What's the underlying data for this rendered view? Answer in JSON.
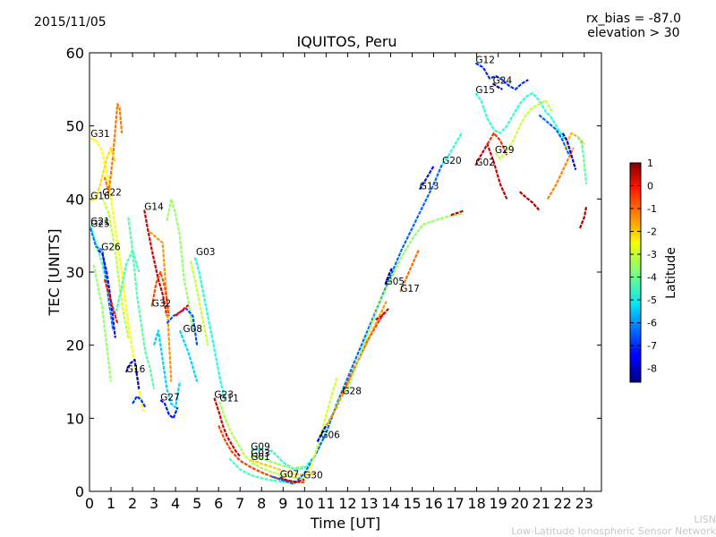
{
  "header": {
    "date": "2015/11/05",
    "rx_bias": "rx_bias = -87.0",
    "elevation": "elevation > 30",
    "title": "IQUITOS, Peru"
  },
  "footer": {
    "line1": "LISN",
    "line2": "Low-Latitude Ionospheric Sensor Network"
  },
  "chart_data": {
    "type": "scatter",
    "title": "IQUITOS, Peru",
    "xlabel": "Time [UT]",
    "ylabel": "TEC [UNITS]",
    "xlim": [
      0,
      23.8
    ],
    "ylim": [
      0,
      60
    ],
    "xticks": [
      0,
      1,
      2,
      3,
      4,
      5,
      6,
      7,
      8,
      9,
      10,
      11,
      12,
      13,
      14,
      15,
      16,
      17,
      18,
      19,
      20,
      21,
      22,
      23
    ],
    "yticks": [
      0,
      10,
      20,
      30,
      40,
      50,
      60
    ],
    "colorbar": {
      "label": "Latitude",
      "range": [
        -8.6,
        1.0
      ],
      "ticks": [
        1,
        0,
        -1,
        -2,
        -3,
        -4,
        -5,
        -6,
        -7,
        -8
      ]
    },
    "satellite_labels": [
      {
        "name": "G31",
        "x": 0.05,
        "y": 48.5
      },
      {
        "name": "G16",
        "x": 0.05,
        "y": 40.0
      },
      {
        "name": "G22",
        "x": 0.6,
        "y": 40.5
      },
      {
        "name": "G21",
        "x": 0.05,
        "y": 36.5
      },
      {
        "name": "G25",
        "x": 0.05,
        "y": 36.2
      },
      {
        "name": "G26",
        "x": 0.55,
        "y": 33.0
      },
      {
        "name": "G14",
        "x": 2.55,
        "y": 38.5
      },
      {
        "name": "G03",
        "x": 4.95,
        "y": 32.3
      },
      {
        "name": "G32",
        "x": 2.9,
        "y": 25.3
      },
      {
        "name": "G08",
        "x": 4.35,
        "y": 21.8
      },
      {
        "name": "G16",
        "x": 1.7,
        "y": 16.3
      },
      {
        "name": "G27",
        "x": 3.3,
        "y": 12.4
      },
      {
        "name": "G23",
        "x": 5.8,
        "y": 12.8
      },
      {
        "name": "G11",
        "x": 6.05,
        "y": 12.3
      },
      {
        "name": "G09",
        "x": 7.5,
        "y": 5.7
      },
      {
        "name": "G03",
        "x": 7.5,
        "y": 4.8
      },
      {
        "name": "G01",
        "x": 7.5,
        "y": 4.3
      },
      {
        "name": "G07",
        "x": 8.85,
        "y": 1.9
      },
      {
        "name": "G30",
        "x": 9.95,
        "y": 1.8
      },
      {
        "name": "G06",
        "x": 10.75,
        "y": 7.3
      },
      {
        "name": "G28",
        "x": 11.75,
        "y": 13.3
      },
      {
        "name": "G05",
        "x": 13.75,
        "y": 28.3
      },
      {
        "name": "G17",
        "x": 14.45,
        "y": 27.3
      },
      {
        "name": "G13",
        "x": 15.35,
        "y": 41.3
      },
      {
        "name": "G20",
        "x": 16.4,
        "y": 44.8
      },
      {
        "name": "G12",
        "x": 17.95,
        "y": 58.6
      },
      {
        "name": "G24",
        "x": 18.75,
        "y": 55.8
      },
      {
        "name": "G15",
        "x": 17.95,
        "y": 54.5
      },
      {
        "name": "G29",
        "x": 18.85,
        "y": 46.3
      },
      {
        "name": "G02",
        "x": 17.95,
        "y": 44.6
      }
    ],
    "series": [
      {
        "lat": -2.6,
        "x": [
          0.05,
          0.3,
          0.6,
          0.9,
          1.1,
          1.3,
          1.5,
          1.7,
          1.9,
          2.1,
          2.3,
          2.5
        ],
        "y": [
          48.3,
          48.0,
          46.5,
          42.0,
          38.0,
          34.0,
          30.0,
          25.0,
          21.0,
          17.5,
          14.0,
          11.0
        ]
      },
      {
        "lat": -1.3,
        "x": [
          0.7,
          0.9,
          1.1,
          1.3,
          1.4,
          1.5
        ],
        "y": [
          43.0,
          41.0,
          46.0,
          53.0,
          52.5,
          49.0
        ]
      },
      {
        "lat": -2.3,
        "x": [
          0.05,
          0.3,
          0.5,
          0.8,
          1.0,
          1.2
        ],
        "y": [
          39.8,
          40.0,
          42.0,
          45.5,
          47.0,
          45.0
        ]
      },
      {
        "lat": -3.2,
        "x": [
          0.6,
          0.9,
          1.2,
          1.4,
          1.6,
          1.8
        ],
        "y": [
          40.2,
          38.0,
          33.0,
          28.0,
          24.0,
          21.0
        ]
      },
      {
        "lat": -4.3,
        "x": [
          0.05,
          0.3,
          0.6,
          0.9,
          1.2,
          1.5,
          1.7,
          2.0,
          2.3
        ],
        "y": [
          36.3,
          34.0,
          31.0,
          27.0,
          24.0,
          28.0,
          31.0,
          33.0,
          30.0
        ]
      },
      {
        "lat": -6.2,
        "x": [
          0.05,
          0.3,
          0.6,
          0.9,
          1.1
        ],
        "y": [
          36.0,
          33.5,
          33.0,
          26.0,
          22.0
        ]
      },
      {
        "lat": -7.3,
        "x": [
          0.4,
          0.6,
          0.8,
          1.0,
          1.2
        ],
        "y": [
          33.0,
          32.5,
          30.0,
          26.0,
          21.0
        ]
      },
      {
        "lat": -0.4,
        "x": [
          0.7,
          0.9,
          1.1,
          1.3
        ],
        "y": [
          29.0,
          27.0,
          25.0,
          23.0
        ]
      },
      {
        "lat": -3.6,
        "x": [
          0.2,
          0.4,
          0.6,
          0.8,
          1.0
        ],
        "y": [
          31.0,
          28.0,
          25.0,
          20.0,
          15.0
        ]
      },
      {
        "lat": 0.3,
        "x": [
          2.55,
          2.7,
          2.9,
          3.2,
          3.4,
          3.6
        ],
        "y": [
          38.5,
          36.0,
          33.0,
          29.0,
          27.0,
          24.0
        ]
      },
      {
        "lat": -1.6,
        "x": [
          2.8,
          3.0,
          3.2,
          3.4,
          3.6,
          3.8
        ],
        "y": [
          35.5,
          35.0,
          34.5,
          34.0,
          26.0,
          15.0
        ]
      },
      {
        "lat": -3.6,
        "x": [
          3.6,
          3.8,
          4.0,
          4.2,
          4.4,
          4.6,
          4.8
        ],
        "y": [
          37.0,
          40.0,
          38.0,
          35.0,
          29.0,
          26.0,
          22.0
        ]
      },
      {
        "lat": -4.2,
        "x": [
          1.8,
          2.0,
          2.2,
          2.4,
          2.6,
          2.8,
          3.0
        ],
        "y": [
          37.5,
          33.0,
          27.0,
          23.0,
          19.0,
          17.0,
          14.0
        ]
      },
      {
        "lat": -4.7,
        "x": [
          4.9,
          5.1,
          5.3,
          5.5,
          5.7,
          5.9,
          6.1,
          6.3
        ],
        "y": [
          32.0,
          30.0,
          27.0,
          24.0,
          21.0,
          18.0,
          15.0,
          12.5
        ]
      },
      {
        "lat": -3.1,
        "x": [
          4.7,
          4.9,
          5.1,
          5.3,
          5.5
        ],
        "y": [
          31.5,
          29.0,
          26.0,
          23.0,
          20.0
        ]
      },
      {
        "lat": -0.9,
        "x": [
          2.9,
          3.1,
          3.3,
          3.5,
          3.7
        ],
        "y": [
          25.3,
          28.5,
          30.0,
          28.0,
          24.0
        ]
      },
      {
        "lat": -6.6,
        "x": [
          3.6,
          3.9,
          4.2,
          4.5,
          4.8,
          5.0
        ],
        "y": [
          23.0,
          24.0,
          24.5,
          25.0,
          24.0,
          20.0
        ]
      },
      {
        "lat": -0.2,
        "x": [
          4.0,
          4.2,
          4.4,
          4.6
        ],
        "y": [
          24.0,
          24.5,
          25.0,
          25.5
        ]
      },
      {
        "lat": -5.4,
        "x": [
          4.2,
          4.4,
          4.6,
          4.8,
          5.0
        ],
        "y": [
          22.0,
          20.5,
          19.0,
          17.0,
          15.0
        ]
      },
      {
        "lat": -7.8,
        "x": [
          1.7,
          1.9,
          2.1,
          2.3
        ],
        "y": [
          16.3,
          17.5,
          18.0,
          14.0
        ]
      },
      {
        "lat": -6.9,
        "x": [
          2.0,
          2.2,
          2.4,
          2.6
        ],
        "y": [
          12.0,
          13.0,
          12.5,
          11.5
        ]
      },
      {
        "lat": -7.2,
        "x": [
          3.3,
          3.5,
          3.7,
          3.9,
          4.1
        ],
        "y": [
          12.5,
          12.0,
          10.5,
          10.0,
          11.5
        ]
      },
      {
        "lat": -5.4,
        "x": [
          3.0,
          3.2,
          3.4,
          3.6,
          3.8,
          4.0,
          4.2
        ],
        "y": [
          20.0,
          22.0,
          18.0,
          14.0,
          12.0,
          11.5,
          15.0
        ]
      },
      {
        "lat": 0.2,
        "x": [
          5.8,
          6.0,
          6.2,
          6.4,
          6.6,
          6.8,
          7.0
        ],
        "y": [
          12.8,
          11.0,
          9.0,
          7.5,
          6.5,
          5.5,
          4.8
        ]
      },
      {
        "lat": -3.3,
        "x": [
          6.05,
          6.3,
          6.6,
          6.9,
          7.2,
          7.5,
          8.0,
          8.5,
          9.0,
          9.5,
          10.0
        ],
        "y": [
          12.3,
          10.0,
          8.0,
          6.5,
          5.0,
          4.0,
          3.2,
          2.6,
          2.2,
          1.9,
          1.7
        ]
      },
      {
        "lat": -0.8,
        "x": [
          6.0,
          6.3,
          6.6,
          7.0,
          7.5,
          8.0,
          8.5,
          9.0,
          9.5,
          10.0
        ],
        "y": [
          9.0,
          7.0,
          5.5,
          4.2,
          3.3,
          2.6,
          2.0,
          1.6,
          1.3,
          1.2
        ]
      },
      {
        "lat": -4.6,
        "x": [
          7.5,
          8.0,
          8.5,
          9.0,
          9.5,
          10.0,
          10.5,
          11.0,
          11.5,
          12.0
        ],
        "y": [
          5.7,
          5.8,
          5.5,
          4.0,
          3.0,
          3.2,
          5.0,
          8.0,
          12.0,
          15.5
        ]
      },
      {
        "lat": -3.6,
        "x": [
          7.5,
          8.0,
          8.5,
          9.0,
          9.5,
          10.0
        ],
        "y": [
          4.8,
          4.5,
          4.0,
          3.5,
          3.2,
          3.4
        ]
      },
      {
        "lat": -2.1,
        "x": [
          7.5,
          8.0,
          8.5,
          9.0,
          9.5,
          10.0,
          10.5
        ],
        "y": [
          4.3,
          3.8,
          3.3,
          2.8,
          2.4,
          2.2,
          2.5
        ]
      },
      {
        "lat": -4.4,
        "x": [
          6.5,
          7.0,
          7.5,
          8.0,
          8.5,
          9.0,
          9.5
        ],
        "y": [
          4.5,
          3.0,
          2.2,
          1.8,
          1.5,
          1.3,
          1.2
        ]
      },
      {
        "lat": -6.4,
        "x": [
          8.5,
          9.0,
          9.5,
          10.0,
          10.5,
          11.0,
          11.5,
          12.0,
          12.5,
          13.0,
          13.5,
          14.0,
          14.5,
          15.0,
          15.5,
          16.0,
          16.4
        ],
        "y": [
          2.0,
          1.5,
          1.0,
          2.5,
          5.0,
          8.0,
          12.0,
          15.5,
          19.0,
          22.5,
          26.0,
          29.5,
          33.0,
          36.0,
          39.0,
          42.0,
          44.8
        ]
      },
      {
        "lat": 0.4,
        "x": [
          8.85,
          9.2,
          9.6,
          10.0
        ],
        "y": [
          1.9,
          1.5,
          1.3,
          1.6
        ]
      },
      {
        "lat": -3.0,
        "x": [
          9.95,
          10.3,
          10.7,
          11.1,
          11.5
        ],
        "y": [
          1.8,
          3.5,
          7.0,
          11.5,
          15.5
        ]
      },
      {
        "lat": -3.9,
        "x": [
          10.7,
          11.2,
          11.6,
          12.0
        ],
        "y": [
          7.3,
          10.0,
          12.5,
          14.0
        ]
      },
      {
        "lat": -7.7,
        "x": [
          10.6,
          10.8,
          11.0
        ],
        "y": [
          6.8,
          8.0,
          9.0
        ]
      },
      {
        "lat": -0.6,
        "x": [
          11.75,
          12.1,
          12.5,
          12.9,
          13.3,
          13.7
        ],
        "y": [
          13.3,
          15.5,
          18.0,
          20.5,
          22.5,
          24.5
        ]
      },
      {
        "lat": -1.6,
        "x": [
          11.0,
          11.4,
          11.8,
          12.2,
          12.6,
          13.0,
          13.4,
          13.8
        ],
        "y": [
          9.0,
          11.0,
          13.5,
          16.0,
          18.5,
          21.0,
          23.5,
          26.0
        ]
      },
      {
        "lat": -3.6,
        "x": [
          12.0,
          12.5,
          13.0,
          13.5,
          14.0,
          14.5,
          15.0,
          15.5,
          16.0,
          16.5,
          17.0,
          17.4
        ],
        "y": [
          14.0,
          18.0,
          22.0,
          26.0,
          29.0,
          32.0,
          34.5,
          36.5,
          37.0,
          37.5,
          37.8,
          38.0
        ]
      },
      {
        "lat": 0.1,
        "x": [
          13.3,
          13.6,
          13.9
        ],
        "y": [
          23.5,
          24.0,
          25.0
        ]
      },
      {
        "lat": -8.4,
        "x": [
          13.75,
          13.9,
          14.05
        ],
        "y": [
          28.3,
          29.5,
          30.5
        ]
      },
      {
        "lat": -1.2,
        "x": [
          14.45,
          14.7,
          15.0,
          15.3
        ],
        "y": [
          27.3,
          29.0,
          31.0,
          33.0
        ]
      },
      {
        "lat": -7.2,
        "x": [
          15.35,
          15.6,
          15.8,
          16.0
        ],
        "y": [
          41.3,
          42.5,
          43.5,
          44.5
        ]
      },
      {
        "lat": -4.7,
        "x": [
          16.4,
          16.7,
          17.0,
          17.3
        ],
        "y": [
          44.8,
          46.0,
          47.5,
          49.0
        ]
      },
      {
        "lat": 0.3,
        "x": [
          16.8,
          17.1,
          17.4
        ],
        "y": [
          37.8,
          38.1,
          38.4
        ]
      },
      {
        "lat": -7.0,
        "x": [
          17.95,
          18.3,
          18.6,
          18.9,
          19.2,
          19.5,
          19.8,
          20.1,
          20.4
        ],
        "y": [
          58.6,
          58.0,
          56.5,
          56.8,
          56.3,
          55.5,
          55.0,
          55.8,
          56.3
        ]
      },
      {
        "lat": -8.3,
        "x": [
          18.75,
          19.0,
          19.2
        ],
        "y": [
          55.8,
          55.3,
          55.0
        ]
      },
      {
        "lat": -4.6,
        "x": [
          17.95,
          18.2,
          18.5,
          18.8,
          19.1,
          19.4,
          19.7,
          20.0,
          20.3,
          20.6,
          20.9,
          21.2,
          21.5,
          21.8,
          22.1
        ],
        "y": [
          54.5,
          53.5,
          51.0,
          49.5,
          49.0,
          50.0,
          51.5,
          53.0,
          54.0,
          54.5,
          53.5,
          52.0,
          51.0,
          49.5,
          48.0
        ]
      },
      {
        "lat": -3.1,
        "x": [
          18.85,
          19.1,
          19.4,
          19.7,
          20.0,
          20.3,
          20.6,
          20.9,
          21.2,
          21.5
        ],
        "y": [
          46.3,
          45.5,
          46.5,
          48.0,
          50.0,
          51.5,
          52.5,
          53.0,
          53.5,
          52.0
        ]
      },
      {
        "lat": -6.4,
        "x": [
          20.9,
          21.3,
          21.7,
          22.0,
          22.3
        ],
        "y": [
          51.5,
          50.5,
          49.5,
          48.0,
          46.0
        ]
      },
      {
        "lat": 0.3,
        "x": [
          17.95,
          18.2,
          18.5,
          18.8,
          19.1,
          19.4
        ],
        "y": [
          44.6,
          46.0,
          47.5,
          45.0,
          42.0,
          40.0
        ]
      },
      {
        "lat": 0.5,
        "x": [
          20.0,
          20.3,
          20.6,
          20.9
        ],
        "y": [
          41.0,
          40.2,
          39.5,
          38.5
        ]
      },
      {
        "lat": -0.6,
        "x": [
          18.5,
          18.8,
          19.1,
          19.4
        ],
        "y": [
          47.5,
          49.0,
          48.0,
          46.0
        ]
      },
      {
        "lat": -1.4,
        "x": [
          21.3,
          21.7,
          22.1,
          22.5
        ],
        "y": [
          40.0,
          42.0,
          44.5,
          47.0
        ]
      },
      {
        "lat": -1.9,
        "x": [
          22.1,
          22.4,
          22.7,
          23.0
        ],
        "y": [
          47.0,
          49.0,
          48.5,
          47.5
        ]
      },
      {
        "lat": -4.1,
        "x": [
          22.7,
          22.9,
          23.1
        ],
        "y": [
          48.5,
          47.5,
          42.0
        ]
      },
      {
        "lat": -7.9,
        "x": [
          22.0,
          22.2,
          22.4,
          22.6
        ],
        "y": [
          49.0,
          48.0,
          46.0,
          44.0
        ]
      },
      {
        "lat": 0.6,
        "x": [
          22.8,
          23.0,
          23.1
        ],
        "y": [
          36.0,
          37.5,
          39.0
        ]
      }
    ]
  }
}
